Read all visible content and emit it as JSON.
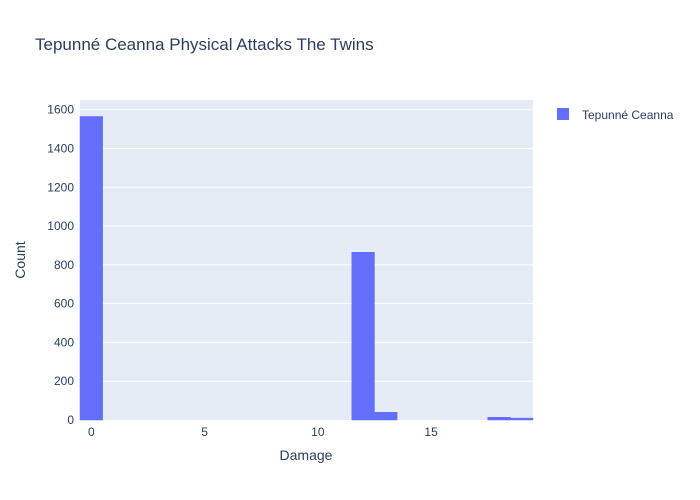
{
  "chart_data": {
    "type": "bar",
    "title": "Tepunné Ceanna Physical Attacks The Twins",
    "xlabel": "Damage",
    "ylabel": "Count",
    "xlim": [
      -0.5,
      19.5
    ],
    "ylim": [
      0,
      1650
    ],
    "x_ticks": [
      0,
      5,
      10,
      15
    ],
    "y_ticks": [
      0,
      200,
      400,
      600,
      800,
      1000,
      1200,
      1400,
      1600
    ],
    "grid": true,
    "legend_position": "top-right",
    "bin_width": 1,
    "series": [
      {
        "name": "Tepunné Ceanna",
        "color": "#636efa",
        "bins": [
          {
            "x0": -0.5,
            "x1": 0.5,
            "count": 1565
          },
          {
            "x0": 11.5,
            "x1": 12.5,
            "count": 865
          },
          {
            "x0": 12.5,
            "x1": 13.5,
            "count": 40
          },
          {
            "x0": 17.5,
            "x1": 18.5,
            "count": 14
          },
          {
            "x0": 18.5,
            "x1": 19.5,
            "count": 10
          }
        ]
      }
    ]
  },
  "colors": {
    "plot_background": "#e5ecf6",
    "grid": "#ffffff",
    "text": "#2a3f5f"
  },
  "legend_icon": "bar-swatch"
}
